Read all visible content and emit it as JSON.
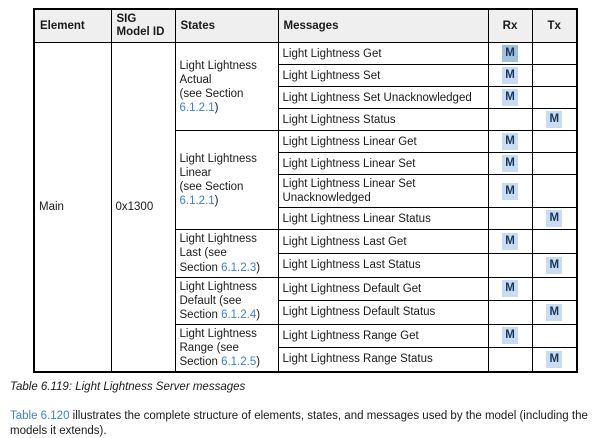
{
  "colors": {
    "link": "#3d7edb",
    "text": "#1a1a1a",
    "border": "#000000",
    "header_bg": "#efefef",
    "m_text": "#17365d",
    "m_highlight": "#c9dcf2",
    "m_highlight_dark": "#a2c1da"
  },
  "table": {
    "headers": [
      {
        "id": "element",
        "label": "Element"
      },
      {
        "id": "sig-model-id",
        "label": "SIG Model ID"
      },
      {
        "id": "states",
        "label": "States"
      },
      {
        "id": "messages",
        "label": "Messages"
      },
      {
        "id": "rx",
        "label": "Rx"
      },
      {
        "id": "tx",
        "label": "Tx"
      }
    ],
    "element": "Main",
    "sig_model_id": "0x1300",
    "groups": [
      {
        "state_lines": [
          "Light Lightness",
          "Actual",
          "(see Section",
          "6.1.2.1)"
        ],
        "link_text": "6.1.2.1",
        "rows": [
          {
            "message": "Light Lightness Get",
            "rx": "M",
            "tx": "",
            "highlight": "dark"
          },
          {
            "message": "Light Lightness Set",
            "rx": "M",
            "tx": ""
          },
          {
            "message": "Light Lightness Set Unacknowledged",
            "rx": "M",
            "tx": ""
          },
          {
            "message": "Light Lightness Status",
            "rx": "",
            "tx": "M"
          }
        ]
      },
      {
        "state_lines": [
          "Light Lightness",
          "Linear",
          "(see Section",
          "6.1.2.1)"
        ],
        "link_text": "6.1.2.1",
        "rows": [
          {
            "message": "Light Lightness Linear Get",
            "rx": "M",
            "tx": ""
          },
          {
            "message": "Light Lightness Linear Set",
            "rx": "M",
            "tx": ""
          },
          {
            "message": "Light Lightness Linear Set Unacknowledged",
            "rx": "M",
            "tx": ""
          },
          {
            "message": "Light Lightness Linear Status",
            "rx": "",
            "tx": "M"
          }
        ]
      },
      {
        "state_lines": [
          "Light Lightness",
          "Last (see",
          "Section 6.1.2.3)"
        ],
        "link_text": "6.1.2.3",
        "rows": [
          {
            "message": "Light Lightness Last Get",
            "rx": "M",
            "tx": ""
          },
          {
            "message": "Light Lightness Last Status",
            "rx": "",
            "tx": "M"
          }
        ]
      },
      {
        "state_lines": [
          "Light Lightness",
          "Default (see",
          "Section 6.1.2.4)"
        ],
        "link_text": "6.1.2.4",
        "rows": [
          {
            "message": "Light Lightness Default Get",
            "rx": "M",
            "tx": ""
          },
          {
            "message": "Light Lightness Default Status",
            "rx": "",
            "tx": "M"
          }
        ]
      },
      {
        "state_lines": [
          "Light Lightness",
          "Range (see",
          "Section 6.1.2.5)"
        ],
        "link_text": "6.1.2.5",
        "rows": [
          {
            "message": "Light Lightness Range Get",
            "rx": "M",
            "tx": ""
          },
          {
            "message": "Light Lightness Range Status",
            "rx": "",
            "tx": "M"
          }
        ]
      }
    ]
  },
  "caption": "Table 6.119: Light Lightness Server messages",
  "paragraph": {
    "link_text": "Table 6.120",
    "rest": " illustrates the complete structure of elements, states, and messages used by the model (including the models it extends)."
  }
}
